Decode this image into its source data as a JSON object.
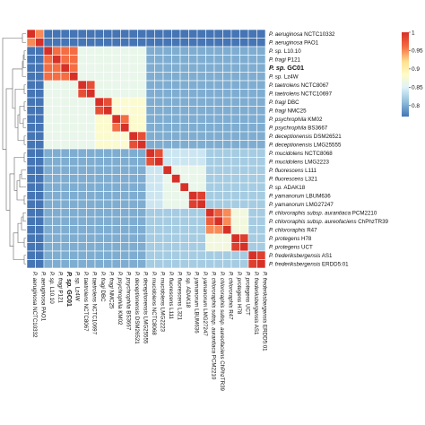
{
  "chart_data": {
    "type": "heatmap",
    "row_labels": [
      {
        "genus": "P.",
        "epithet": "aeruginosa",
        "strain": "NCTC10332",
        "bold": false
      },
      {
        "genus": "P.",
        "epithet": "aeruginosa",
        "strain": "PAO1",
        "bold": false
      },
      {
        "genus": "P.",
        "epithet": "sp.",
        "strain": "L10.10",
        "bold": false
      },
      {
        "genus": "P.",
        "epithet": "fragi",
        "strain": "P121",
        "bold": false
      },
      {
        "genus": "P.",
        "epithet": "sp.",
        "strain": "GC01",
        "bold": true
      },
      {
        "genus": "P.",
        "epithet": "sp.",
        "strain": "Lz4W",
        "bold": false
      },
      {
        "genus": "P.",
        "epithet": "taetrolens",
        "strain": "NCTC8067",
        "bold": false
      },
      {
        "genus": "P.",
        "epithet": "taetrolens",
        "strain": "NCTC10697",
        "bold": false
      },
      {
        "genus": "P.",
        "epithet": "fragi",
        "strain": "DBC",
        "bold": false
      },
      {
        "genus": "P.",
        "epithet": "fragi",
        "strain": "NMC25",
        "bold": false
      },
      {
        "genus": "P.",
        "epithet": "psychrophila",
        "strain": "KM02",
        "bold": false
      },
      {
        "genus": "P.",
        "epithet": "psychrophila",
        "strain": "BS3667",
        "bold": false
      },
      {
        "genus": "P.",
        "epithet": "deceptionensis",
        "strain": "DSM26521",
        "bold": false
      },
      {
        "genus": "P.",
        "epithet": "deceptionensis",
        "strain": "LMG25555",
        "bold": false
      },
      {
        "genus": "P.",
        "epithet": "mucidolens",
        "strain": "NCTC8068",
        "bold": false
      },
      {
        "genus": "P.",
        "epithet": "mucidolens",
        "strain": "LMG2223",
        "bold": false
      },
      {
        "genus": "P.",
        "epithet": "fluorescens",
        "strain": "L111",
        "bold": false
      },
      {
        "genus": "P.",
        "epithet": "fluorescens",
        "strain": "L321",
        "bold": false
      },
      {
        "genus": "P.",
        "epithet": "sp.",
        "strain": "ADAK18",
        "bold": false
      },
      {
        "genus": "P.",
        "epithet": "yamanorum",
        "strain": "LBUM636",
        "bold": false
      },
      {
        "genus": "P.",
        "epithet": "yamanorum",
        "strain": "LMG27247",
        "bold": false
      },
      {
        "genus": "P.",
        "epithet": "chlororaphis subsp. aurantiaca",
        "strain": "PCM2210",
        "bold": false
      },
      {
        "genus": "P.",
        "epithet": "chlororaphis subsp. aureofaciens",
        "strain": "ChPhzTR39",
        "bold": false
      },
      {
        "genus": "P.",
        "epithet": "chlororaphis",
        "strain": "R47",
        "bold": false
      },
      {
        "genus": "P.",
        "epithet": "protegens",
        "strain": "H78",
        "bold": false
      },
      {
        "genus": "P.",
        "epithet": "protegens",
        "strain": "UCT",
        "bold": false
      },
      {
        "genus": "P.",
        "epithet": "frederiksbergensis",
        "strain": "AS1",
        "bold": false
      },
      {
        "genus": "P.",
        "epithet": "frederiksbergensis",
        "strain": "ERDD5:01",
        "bold": false
      }
    ],
    "values": [
      [
        1.0,
        0.95,
        0.77,
        0.77,
        0.77,
        0.77,
        0.77,
        0.77,
        0.77,
        0.77,
        0.77,
        0.77,
        0.77,
        0.77,
        0.77,
        0.77,
        0.77,
        0.77,
        0.77,
        0.77,
        0.77,
        0.77,
        0.77,
        0.77,
        0.77,
        0.77,
        0.77,
        0.77
      ],
      [
        0.95,
        1.0,
        0.77,
        0.77,
        0.77,
        0.77,
        0.77,
        0.77,
        0.77,
        0.77,
        0.77,
        0.77,
        0.77,
        0.77,
        0.77,
        0.77,
        0.77,
        0.77,
        0.77,
        0.77,
        0.77,
        0.77,
        0.77,
        0.77,
        0.77,
        0.77,
        0.77,
        0.77
      ],
      [
        0.77,
        0.77,
        1.0,
        0.96,
        0.96,
        0.96,
        0.86,
        0.86,
        0.86,
        0.86,
        0.86,
        0.86,
        0.86,
        0.86,
        0.8,
        0.8,
        0.8,
        0.8,
        0.8,
        0.8,
        0.8,
        0.8,
        0.8,
        0.8,
        0.8,
        0.8,
        0.8,
        0.8
      ],
      [
        0.77,
        0.77,
        0.96,
        1.0,
        0.96,
        0.96,
        0.86,
        0.86,
        0.86,
        0.86,
        0.86,
        0.86,
        0.86,
        0.86,
        0.8,
        0.8,
        0.8,
        0.8,
        0.8,
        0.8,
        0.8,
        0.8,
        0.8,
        0.8,
        0.8,
        0.8,
        0.8,
        0.8
      ],
      [
        0.77,
        0.77,
        0.96,
        0.96,
        1.0,
        0.96,
        0.86,
        0.86,
        0.86,
        0.86,
        0.86,
        0.86,
        0.86,
        0.86,
        0.8,
        0.8,
        0.8,
        0.8,
        0.8,
        0.8,
        0.8,
        0.8,
        0.8,
        0.8,
        0.8,
        0.8,
        0.8,
        0.8
      ],
      [
        0.77,
        0.77,
        0.96,
        0.96,
        0.96,
        1.0,
        0.86,
        0.86,
        0.86,
        0.86,
        0.86,
        0.86,
        0.86,
        0.86,
        0.8,
        0.8,
        0.8,
        0.8,
        0.8,
        0.8,
        0.8,
        0.8,
        0.8,
        0.8,
        0.8,
        0.8,
        0.8,
        0.8
      ],
      [
        0.77,
        0.77,
        0.86,
        0.86,
        0.86,
        0.86,
        1.0,
        0.98,
        0.86,
        0.86,
        0.86,
        0.86,
        0.86,
        0.86,
        0.8,
        0.8,
        0.8,
        0.8,
        0.8,
        0.8,
        0.8,
        0.8,
        0.8,
        0.8,
        0.8,
        0.8,
        0.8,
        0.8
      ],
      [
        0.77,
        0.77,
        0.86,
        0.86,
        0.86,
        0.86,
        0.98,
        1.0,
        0.86,
        0.86,
        0.86,
        0.86,
        0.86,
        0.86,
        0.8,
        0.8,
        0.8,
        0.8,
        0.8,
        0.8,
        0.8,
        0.8,
        0.8,
        0.8,
        0.8,
        0.8,
        0.8,
        0.8
      ],
      [
        0.77,
        0.77,
        0.86,
        0.86,
        0.86,
        0.86,
        0.86,
        0.86,
        1.0,
        0.98,
        0.88,
        0.88,
        0.88,
        0.88,
        0.8,
        0.8,
        0.8,
        0.8,
        0.8,
        0.8,
        0.8,
        0.8,
        0.8,
        0.8,
        0.8,
        0.8,
        0.8,
        0.8
      ],
      [
        0.77,
        0.77,
        0.86,
        0.86,
        0.86,
        0.86,
        0.86,
        0.86,
        0.98,
        1.0,
        0.88,
        0.88,
        0.88,
        0.88,
        0.8,
        0.8,
        0.8,
        0.8,
        0.8,
        0.8,
        0.8,
        0.8,
        0.8,
        0.8,
        0.8,
        0.8,
        0.8,
        0.8
      ],
      [
        0.77,
        0.77,
        0.86,
        0.86,
        0.86,
        0.86,
        0.86,
        0.86,
        0.88,
        0.88,
        1.0,
        0.96,
        0.88,
        0.88,
        0.8,
        0.8,
        0.8,
        0.8,
        0.8,
        0.8,
        0.8,
        0.8,
        0.8,
        0.8,
        0.8,
        0.8,
        0.8,
        0.8
      ],
      [
        0.77,
        0.77,
        0.86,
        0.86,
        0.86,
        0.86,
        0.86,
        0.86,
        0.88,
        0.88,
        0.96,
        1.0,
        0.88,
        0.88,
        0.8,
        0.8,
        0.8,
        0.8,
        0.8,
        0.8,
        0.8,
        0.8,
        0.8,
        0.8,
        0.8,
        0.8,
        0.8,
        0.8
      ],
      [
        0.77,
        0.77,
        0.86,
        0.86,
        0.86,
        0.86,
        0.86,
        0.86,
        0.88,
        0.88,
        0.88,
        0.88,
        1.0,
        0.98,
        0.8,
        0.8,
        0.8,
        0.8,
        0.8,
        0.8,
        0.8,
        0.8,
        0.8,
        0.8,
        0.8,
        0.8,
        0.8,
        0.8
      ],
      [
        0.77,
        0.77,
        0.86,
        0.86,
        0.86,
        0.86,
        0.86,
        0.86,
        0.88,
        0.88,
        0.88,
        0.88,
        0.98,
        1.0,
        0.8,
        0.8,
        0.8,
        0.8,
        0.8,
        0.8,
        0.8,
        0.8,
        0.8,
        0.8,
        0.8,
        0.8,
        0.8,
        0.8
      ],
      [
        0.77,
        0.77,
        0.8,
        0.8,
        0.8,
        0.8,
        0.8,
        0.8,
        0.8,
        0.8,
        0.8,
        0.8,
        0.8,
        0.8,
        1.0,
        0.98,
        0.84,
        0.84,
        0.84,
        0.84,
        0.84,
        0.82,
        0.82,
        0.82,
        0.82,
        0.82,
        0.82,
        0.82
      ],
      [
        0.77,
        0.77,
        0.8,
        0.8,
        0.8,
        0.8,
        0.8,
        0.8,
        0.8,
        0.8,
        0.8,
        0.8,
        0.8,
        0.8,
        0.98,
        1.0,
        0.84,
        0.84,
        0.84,
        0.84,
        0.84,
        0.82,
        0.82,
        0.82,
        0.82,
        0.82,
        0.82,
        0.82
      ],
      [
        0.77,
        0.77,
        0.8,
        0.8,
        0.8,
        0.8,
        0.8,
        0.8,
        0.8,
        0.8,
        0.8,
        0.8,
        0.8,
        0.8,
        0.84,
        0.84,
        1.0,
        0.86,
        0.86,
        0.86,
        0.86,
        0.82,
        0.82,
        0.82,
        0.82,
        0.82,
        0.82,
        0.82
      ],
      [
        0.77,
        0.77,
        0.8,
        0.8,
        0.8,
        0.8,
        0.8,
        0.8,
        0.8,
        0.8,
        0.8,
        0.8,
        0.8,
        0.8,
        0.84,
        0.84,
        0.86,
        1.0,
        0.86,
        0.86,
        0.86,
        0.82,
        0.82,
        0.82,
        0.82,
        0.82,
        0.82,
        0.82
      ],
      [
        0.77,
        0.77,
        0.8,
        0.8,
        0.8,
        0.8,
        0.8,
        0.8,
        0.8,
        0.8,
        0.8,
        0.8,
        0.8,
        0.8,
        0.84,
        0.84,
        0.86,
        0.86,
        1.0,
        0.86,
        0.86,
        0.82,
        0.82,
        0.82,
        0.82,
        0.82,
        0.82,
        0.82
      ],
      [
        0.77,
        0.77,
        0.8,
        0.8,
        0.8,
        0.8,
        0.8,
        0.8,
        0.8,
        0.8,
        0.8,
        0.8,
        0.8,
        0.8,
        0.84,
        0.84,
        0.86,
        0.86,
        0.86,
        1.0,
        0.99,
        0.82,
        0.82,
        0.82,
        0.82,
        0.82,
        0.82,
        0.82
      ],
      [
        0.77,
        0.77,
        0.8,
        0.8,
        0.8,
        0.8,
        0.8,
        0.8,
        0.8,
        0.8,
        0.8,
        0.8,
        0.8,
        0.8,
        0.84,
        0.84,
        0.86,
        0.86,
        0.86,
        0.99,
        1.0,
        0.82,
        0.82,
        0.82,
        0.82,
        0.82,
        0.82,
        0.82
      ],
      [
        0.77,
        0.77,
        0.8,
        0.8,
        0.8,
        0.8,
        0.8,
        0.8,
        0.8,
        0.8,
        0.8,
        0.8,
        0.8,
        0.8,
        0.82,
        0.82,
        0.82,
        0.82,
        0.82,
        0.82,
        0.82,
        1.0,
        0.97,
        0.95,
        0.87,
        0.87,
        0.82,
        0.82
      ],
      [
        0.77,
        0.77,
        0.8,
        0.8,
        0.8,
        0.8,
        0.8,
        0.8,
        0.8,
        0.8,
        0.8,
        0.8,
        0.8,
        0.8,
        0.82,
        0.82,
        0.82,
        0.82,
        0.82,
        0.82,
        0.82,
        0.97,
        1.0,
        0.95,
        0.87,
        0.87,
        0.82,
        0.82
      ],
      [
        0.77,
        0.77,
        0.8,
        0.8,
        0.8,
        0.8,
        0.8,
        0.8,
        0.8,
        0.8,
        0.8,
        0.8,
        0.8,
        0.8,
        0.82,
        0.82,
        0.82,
        0.82,
        0.82,
        0.82,
        0.82,
        0.95,
        0.95,
        1.0,
        0.87,
        0.87,
        0.82,
        0.82
      ],
      [
        0.77,
        0.77,
        0.8,
        0.8,
        0.8,
        0.8,
        0.8,
        0.8,
        0.8,
        0.8,
        0.8,
        0.8,
        0.8,
        0.8,
        0.82,
        0.82,
        0.82,
        0.82,
        0.82,
        0.82,
        0.82,
        0.87,
        0.87,
        0.87,
        1.0,
        0.99,
        0.82,
        0.82
      ],
      [
        0.77,
        0.77,
        0.8,
        0.8,
        0.8,
        0.8,
        0.8,
        0.8,
        0.8,
        0.8,
        0.8,
        0.8,
        0.8,
        0.8,
        0.82,
        0.82,
        0.82,
        0.82,
        0.82,
        0.82,
        0.82,
        0.87,
        0.87,
        0.87,
        0.99,
        1.0,
        0.82,
        0.82
      ],
      [
        0.77,
        0.77,
        0.8,
        0.8,
        0.8,
        0.8,
        0.8,
        0.8,
        0.8,
        0.8,
        0.8,
        0.8,
        0.8,
        0.8,
        0.82,
        0.82,
        0.82,
        0.82,
        0.82,
        0.82,
        0.82,
        0.82,
        0.82,
        0.82,
        0.82,
        0.82,
        1.0,
        0.99
      ],
      [
        0.77,
        0.77,
        0.8,
        0.8,
        0.8,
        0.8,
        0.8,
        0.8,
        0.8,
        0.8,
        0.8,
        0.8,
        0.8,
        0.8,
        0.82,
        0.82,
        0.82,
        0.82,
        0.82,
        0.82,
        0.82,
        0.82,
        0.82,
        0.82,
        0.82,
        0.82,
        0.99,
        1.0
      ]
    ],
    "colorbar": {
      "ticks": [
        "1",
        "0.95",
        "0.9",
        "0.85",
        "0.8"
      ],
      "tick_values": [
        1,
        0.95,
        0.9,
        0.85,
        0.8
      ],
      "range": [
        0.77,
        1.0
      ]
    },
    "color_stops": [
      {
        "value": 0.77,
        "color": "#4575b4"
      },
      {
        "value": 0.81,
        "color": "#91bfdb"
      },
      {
        "value": 0.85,
        "color": "#e0f3f8"
      },
      {
        "value": 0.885,
        "color": "#fffcc8"
      },
      {
        "value": 0.92,
        "color": "#fee090"
      },
      {
        "value": 0.96,
        "color": "#f46d43"
      },
      {
        "value": 1.0,
        "color": "#d73027"
      }
    ],
    "dendrogram": "left-side hierarchical clustering tree",
    "grid": true,
    "legend_position": "top-right"
  }
}
